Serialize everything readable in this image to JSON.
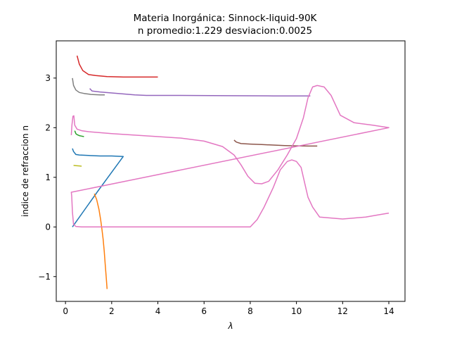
{
  "chart_data": {
    "type": "line",
    "title": "Materia Inorgánica: Sinnock-liquid-90K",
    "subtitle": "n promedio:1.229 desviacion:0.0025",
    "xlabel": "λ",
    "ylabel": "indice de refraccion n",
    "xlim": [
      -0.4,
      14.7
    ],
    "ylim": [
      -1.5,
      3.75
    ],
    "xticks": [
      0,
      2,
      4,
      6,
      8,
      10,
      12,
      14
    ],
    "yticks": [
      -1,
      0,
      1,
      2,
      3
    ],
    "xtick_labels": [
      "0",
      "2",
      "4",
      "6",
      "8",
      "10",
      "12",
      "14"
    ],
    "ytick_labels": [
      "−1",
      "0",
      "1",
      "2",
      "3"
    ],
    "grid": false,
    "series": [
      {
        "color": "#1f77b4",
        "x": [
          0.3,
          0.35,
          0.45,
          0.6,
          1.0,
          1.5,
          2.0,
          2.5,
          1.4,
          0.3
        ],
        "y": [
          1.58,
          1.52,
          1.46,
          1.45,
          1.44,
          1.43,
          1.43,
          1.42,
          0.72,
          0.0
        ]
      },
      {
        "color": "#ff7f0e",
        "x": [
          1.25,
          1.35,
          1.45,
          1.52,
          1.58,
          1.63,
          1.68,
          1.72,
          1.76,
          1.8
        ],
        "y": [
          0.67,
          0.55,
          0.35,
          0.15,
          -0.05,
          -0.25,
          -0.5,
          -0.75,
          -1.0,
          -1.25
        ]
      },
      {
        "color": "#2ca02c",
        "x": [
          0.4,
          0.45,
          0.5,
          0.6,
          0.7,
          0.8
        ],
        "y": [
          1.94,
          1.88,
          1.86,
          1.84,
          1.83,
          1.82
        ]
      },
      {
        "color": "#d62728",
        "x": [
          0.5,
          0.6,
          0.75,
          1.0,
          1.3,
          1.8,
          2.5,
          3.2,
          4.0
        ],
        "y": [
          3.45,
          3.28,
          3.15,
          3.07,
          3.05,
          3.03,
          3.02,
          3.02,
          3.02
        ]
      },
      {
        "color": "#9467bd",
        "x": [
          1.05,
          1.15,
          1.5,
          2.0,
          3.0,
          3.5,
          5.0,
          7.0,
          9.0,
          10.6
        ],
        "y": [
          2.79,
          2.74,
          2.72,
          2.7,
          2.66,
          2.65,
          2.65,
          2.645,
          2.64,
          2.64
        ]
      },
      {
        "color": "#8c564b",
        "x": [
          7.3,
          7.4,
          7.6,
          8.0,
          8.5,
          9.0,
          9.5,
          10.0,
          10.5,
          10.9
        ],
        "y": [
          1.75,
          1.71,
          1.68,
          1.67,
          1.66,
          1.65,
          1.64,
          1.635,
          1.63,
          1.63
        ]
      },
      {
        "color": "#e377c2",
        "x": [
          0.25,
          0.28,
          0.32,
          0.36,
          0.4,
          0.5,
          0.7,
          1.0,
          2.0,
          3.0,
          4.0,
          5.0,
          6.0,
          6.8,
          7.3,
          7.6,
          7.9,
          8.2,
          8.5,
          8.8,
          9.2,
          9.6,
          10.0,
          10.3,
          10.5,
          10.7,
          10.9,
          11.2,
          11.5,
          11.9,
          12.5,
          13.3,
          14.0,
          0.25,
          0.27,
          0.3,
          0.35,
          0.45,
          0.7,
          1.5,
          3.0,
          5.0,
          7.0,
          8.0,
          8.3,
          8.6,
          9.0,
          9.3,
          9.6,
          9.8,
          10.0,
          10.2,
          10.35,
          10.5,
          10.7,
          11.0,
          11.5,
          12.0,
          12.5,
          13.0,
          13.5,
          14.0
        ],
        "y": [
          1.85,
          2.05,
          2.23,
          2.24,
          2.05,
          1.97,
          1.94,
          1.92,
          1.88,
          1.85,
          1.82,
          1.79,
          1.73,
          1.62,
          1.45,
          1.25,
          1.02,
          0.88,
          0.87,
          0.92,
          1.15,
          1.45,
          1.78,
          2.2,
          2.6,
          2.82,
          2.85,
          2.82,
          2.65,
          2.25,
          2.1,
          2.05,
          2.0,
          0.7,
          0.62,
          0.3,
          0.05,
          0.01,
          0.0,
          0.0,
          0.0,
          0.0,
          0.0,
          0.0,
          0.15,
          0.4,
          0.8,
          1.15,
          1.32,
          1.35,
          1.32,
          1.2,
          0.9,
          0.6,
          0.4,
          0.2,
          0.18,
          0.16,
          0.18,
          0.2,
          0.24,
          0.28
        ]
      },
      {
        "color": "#7f7f7f",
        "x": [
          0.3,
          0.35,
          0.45,
          0.6,
          0.8,
          1.1,
          1.5,
          1.7
        ],
        "y": [
          3.0,
          2.85,
          2.76,
          2.71,
          2.69,
          2.67,
          2.66,
          2.66
        ]
      },
      {
        "color": "#bcbd22",
        "x": [
          0.35,
          0.45,
          0.6,
          0.7
        ],
        "y": [
          1.24,
          1.235,
          1.23,
          1.225
        ]
      }
    ]
  }
}
